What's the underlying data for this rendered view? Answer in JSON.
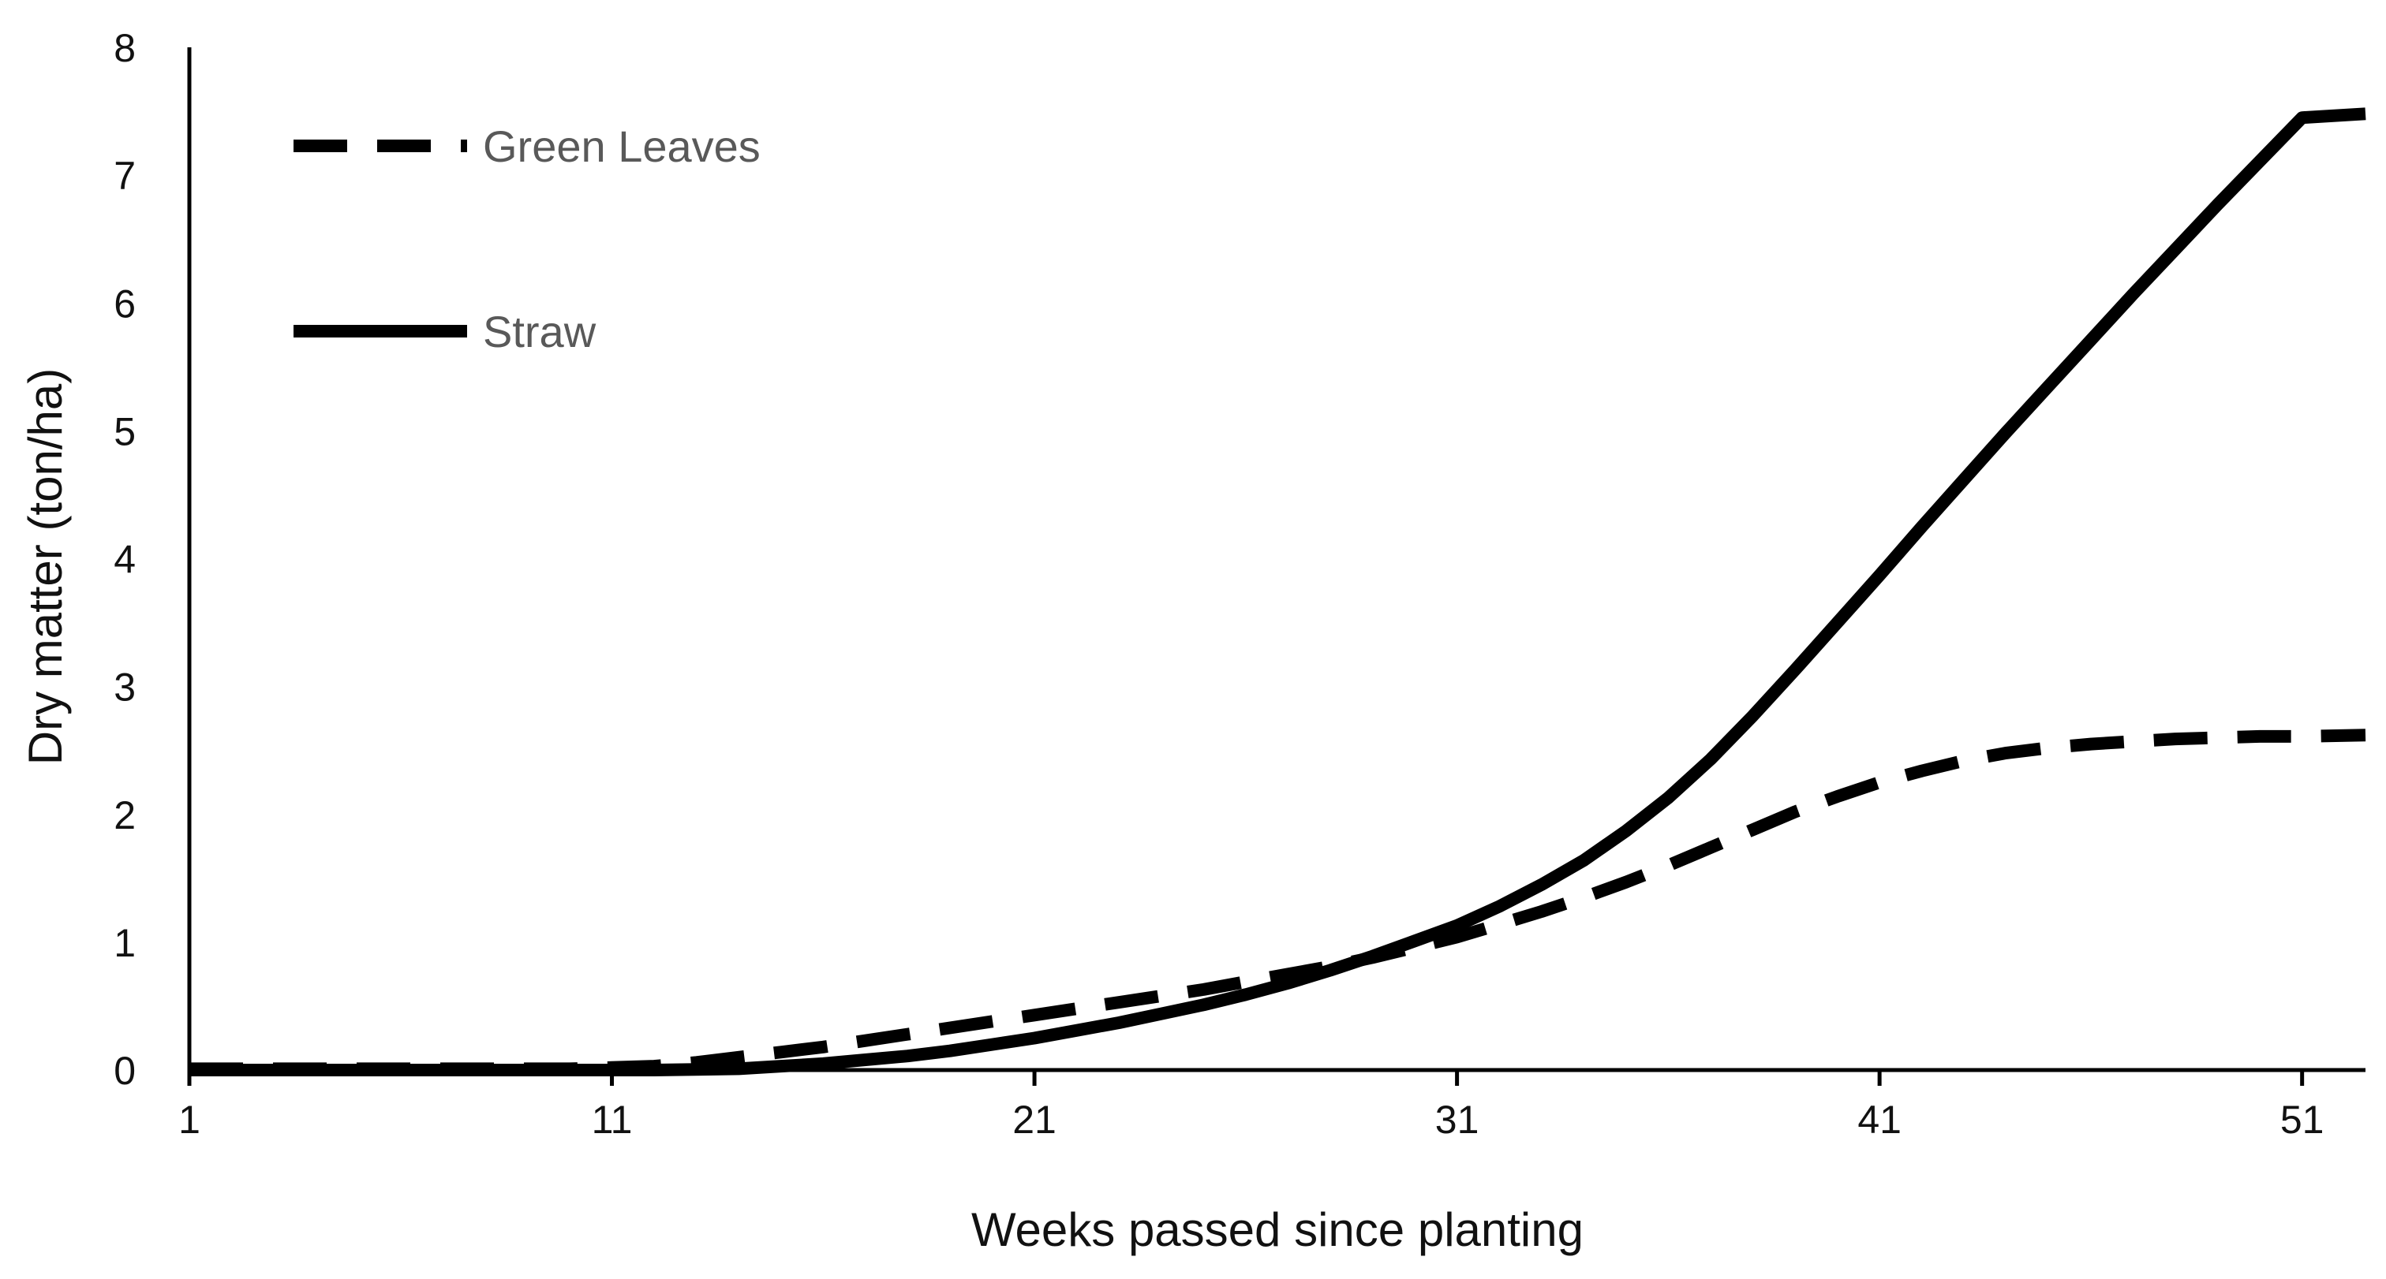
{
  "chart_data": {
    "type": "line",
    "title": "",
    "xlabel": "Weeks passed since planting",
    "ylabel": "Dry matter (ton/ha)",
    "xlim": [
      1,
      52.5
    ],
    "ylim": [
      0,
      8
    ],
    "xticks": [
      1,
      11,
      21,
      31,
      41,
      51
    ],
    "yticks": [
      0,
      1,
      2,
      3,
      4,
      5,
      6,
      7,
      8
    ],
    "grid": false,
    "legend": {
      "position": "top-left"
    },
    "series": [
      {
        "name": "Green Leaves",
        "style": "dashed",
        "color": "#000000",
        "x": [
          1,
          5,
          10,
          11,
          12,
          13,
          14,
          15,
          16,
          17,
          18,
          19,
          20,
          21,
          22,
          23,
          24,
          25,
          26,
          27,
          28,
          29,
          30,
          31,
          32,
          33,
          34,
          35,
          36,
          37,
          38,
          39,
          40,
          41,
          42,
          43,
          44,
          45,
          46,
          47,
          48,
          49,
          50,
          51,
          52.5
        ],
        "y": [
          0.01,
          0.01,
          0.01,
          0.02,
          0.03,
          0.06,
          0.1,
          0.14,
          0.18,
          0.23,
          0.28,
          0.33,
          0.38,
          0.43,
          0.48,
          0.53,
          0.58,
          0.63,
          0.69,
          0.75,
          0.81,
          0.88,
          0.96,
          1.04,
          1.14,
          1.24,
          1.35,
          1.47,
          1.6,
          1.74,
          1.88,
          2.02,
          2.14,
          2.25,
          2.34,
          2.42,
          2.48,
          2.52,
          2.55,
          2.57,
          2.59,
          2.6,
          2.61,
          2.61,
          2.62
        ]
      },
      {
        "name": "Straw",
        "style": "solid",
        "color": "#000000",
        "x": [
          1,
          5,
          10,
          12,
          14,
          15,
          16,
          17,
          18,
          19,
          20,
          21,
          22,
          23,
          24,
          25,
          26,
          27,
          28,
          29,
          30,
          31,
          32,
          33,
          34,
          35,
          36,
          37,
          38,
          39,
          40,
          41,
          42,
          43,
          44,
          45,
          46,
          47,
          48,
          49,
          50,
          51,
          52.5
        ],
        "y": [
          0.0,
          0.0,
          0.0,
          0.0,
          0.01,
          0.03,
          0.05,
          0.08,
          0.11,
          0.15,
          0.2,
          0.25,
          0.31,
          0.37,
          0.44,
          0.51,
          0.59,
          0.68,
          0.78,
          0.89,
          1.01,
          1.13,
          1.28,
          1.45,
          1.64,
          1.87,
          2.13,
          2.43,
          2.77,
          3.13,
          3.5,
          3.87,
          4.25,
          4.62,
          4.99,
          5.35,
          5.71,
          6.07,
          6.42,
          6.77,
          7.11,
          7.45,
          7.48
        ]
      }
    ]
  }
}
